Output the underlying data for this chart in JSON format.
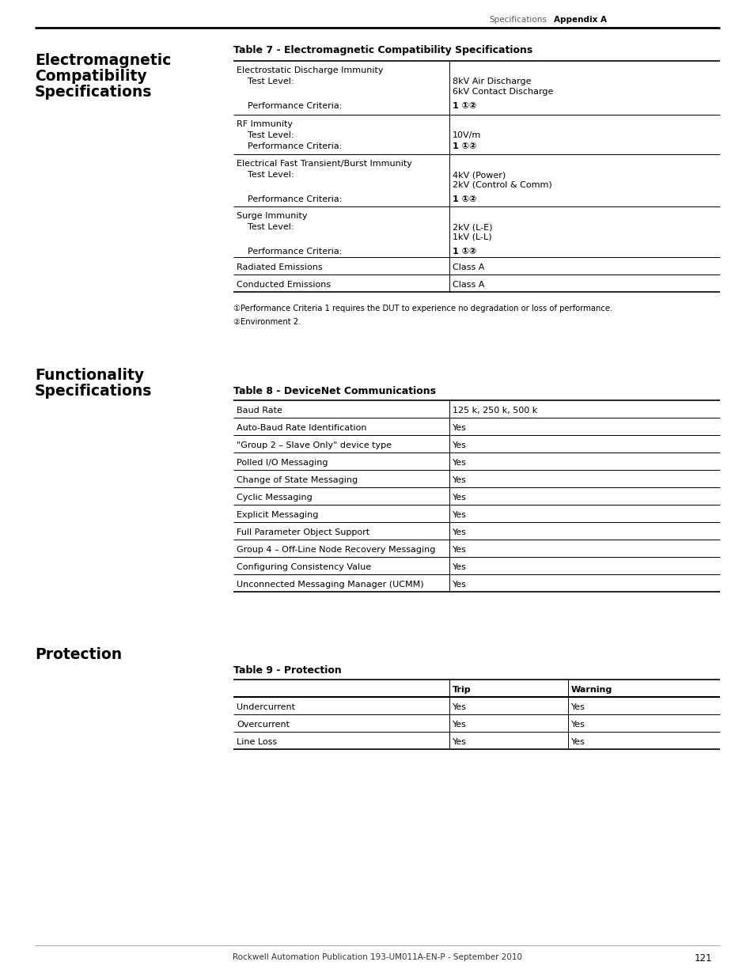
{
  "page_header_left": "Specifications",
  "page_header_right": "Appendix A",
  "page_number": "121",
  "footer_text": "Rockwell Automation Publication 193-UM011A-EN-P - September 2010",
  "table7_title": "Table 7 - Electromagnetic Compatibility Specifications",
  "table8_title": "Table 8 - DeviceNet Communications",
  "table9_title": "Table 9 - Protection",
  "footnote1": "①Performance Criteria 1 requires the DUT to experience no degradation or loss of performance.",
  "footnote2": "②Environment 2.",
  "table8_rows": [
    [
      "Baud Rate",
      "125 k, 250 k, 500 k"
    ],
    [
      "Auto-Baud Rate Identification",
      "Yes"
    ],
    [
      "\"Group 2 – Slave Only\" device type",
      "Yes"
    ],
    [
      "Polled I/O Messaging",
      "Yes"
    ],
    [
      "Change of State Messaging",
      "Yes"
    ],
    [
      "Cyclic Messaging",
      "Yes"
    ],
    [
      "Explicit Messaging",
      "Yes"
    ],
    [
      "Full Parameter Object Support",
      "Yes"
    ],
    [
      "Group 4 – Off-Line Node Recovery Messaging",
      "Yes"
    ],
    [
      "Configuring Consistency Value",
      "Yes"
    ],
    [
      "Unconnected Messaging Manager (UCMM)",
      "Yes"
    ]
  ],
  "table9_rows": [
    [
      "Undercurrent",
      "Yes",
      "Yes"
    ],
    [
      "Overcurrent",
      "Yes",
      "Yes"
    ],
    [
      "Line Loss",
      "Yes",
      "Yes"
    ]
  ],
  "bg_color": "#ffffff"
}
